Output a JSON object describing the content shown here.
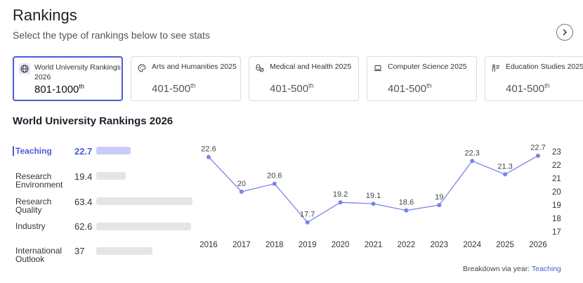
{
  "page": {
    "title": "Rankings",
    "subtitle": "Select the type of rankings below to see stats"
  },
  "icons": {
    "next": "chevron-right-icon"
  },
  "cards": [
    {
      "label": "World University Rankings 2026",
      "rank": "801-1000",
      "suffix": "th",
      "icon": "globe-icon",
      "active": true
    },
    {
      "label": "Arts and Humanities 2025",
      "rank": "401-500",
      "suffix": "th",
      "icon": "palette-icon",
      "active": false
    },
    {
      "label": "Medical and Health 2025",
      "rank": "401-500",
      "suffix": "th",
      "icon": "pills-icon",
      "active": false
    },
    {
      "label": "Computer Science 2025",
      "rank": "401-500",
      "suffix": "th",
      "icon": "laptop-icon",
      "active": false
    },
    {
      "label": "Education Studies 2025",
      "rank": "401-500",
      "suffix": "th",
      "icon": "teacher-icon",
      "active": false
    }
  ],
  "section_title": "World University Rankings 2026",
  "metrics": [
    {
      "label": "Teaching",
      "value": "22.7",
      "score": 22.7,
      "active": true
    },
    {
      "label": "Research Environment",
      "value": "19.4",
      "score": 19.4,
      "active": false
    },
    {
      "label": "Research Quality",
      "value": "63.4",
      "score": 63.4,
      "active": false
    },
    {
      "label": "Industry",
      "value": "62.6",
      "score": 62.6,
      "active": false
    },
    {
      "label": "International Outlook",
      "value": "37",
      "score": 37,
      "active": false
    }
  ],
  "footer": {
    "text": "Breakdown via year: ",
    "link": "Teaching"
  },
  "colors": {
    "accent": "#4c5bd6",
    "line": "#7b82e8",
    "bar": "#e5e5e8",
    "bar_active": "#c9cdf6"
  },
  "chart_data": {
    "type": "line",
    "x": [
      "2016",
      "2017",
      "2018",
      "2019",
      "2020",
      "2021",
      "2022",
      "2023",
      "2024",
      "2025",
      "2026"
    ],
    "series": [
      {
        "values": [
          22.6,
          20,
          20.6,
          17.7,
          19.2,
          19.1,
          18.6,
          19,
          22.3,
          21.3,
          22.7
        ],
        "labels": [
          "22.6",
          "20",
          "20.6",
          "17.7",
          "19.2",
          "19.1",
          "18.6",
          "19",
          "22.3",
          "21.3",
          "22.7"
        ]
      }
    ],
    "y_ticks": [
      17,
      18,
      19,
      20,
      21,
      22,
      23
    ],
    "ylim": [
      17,
      23
    ],
    "y_axis_side": "right",
    "grid": false
  }
}
